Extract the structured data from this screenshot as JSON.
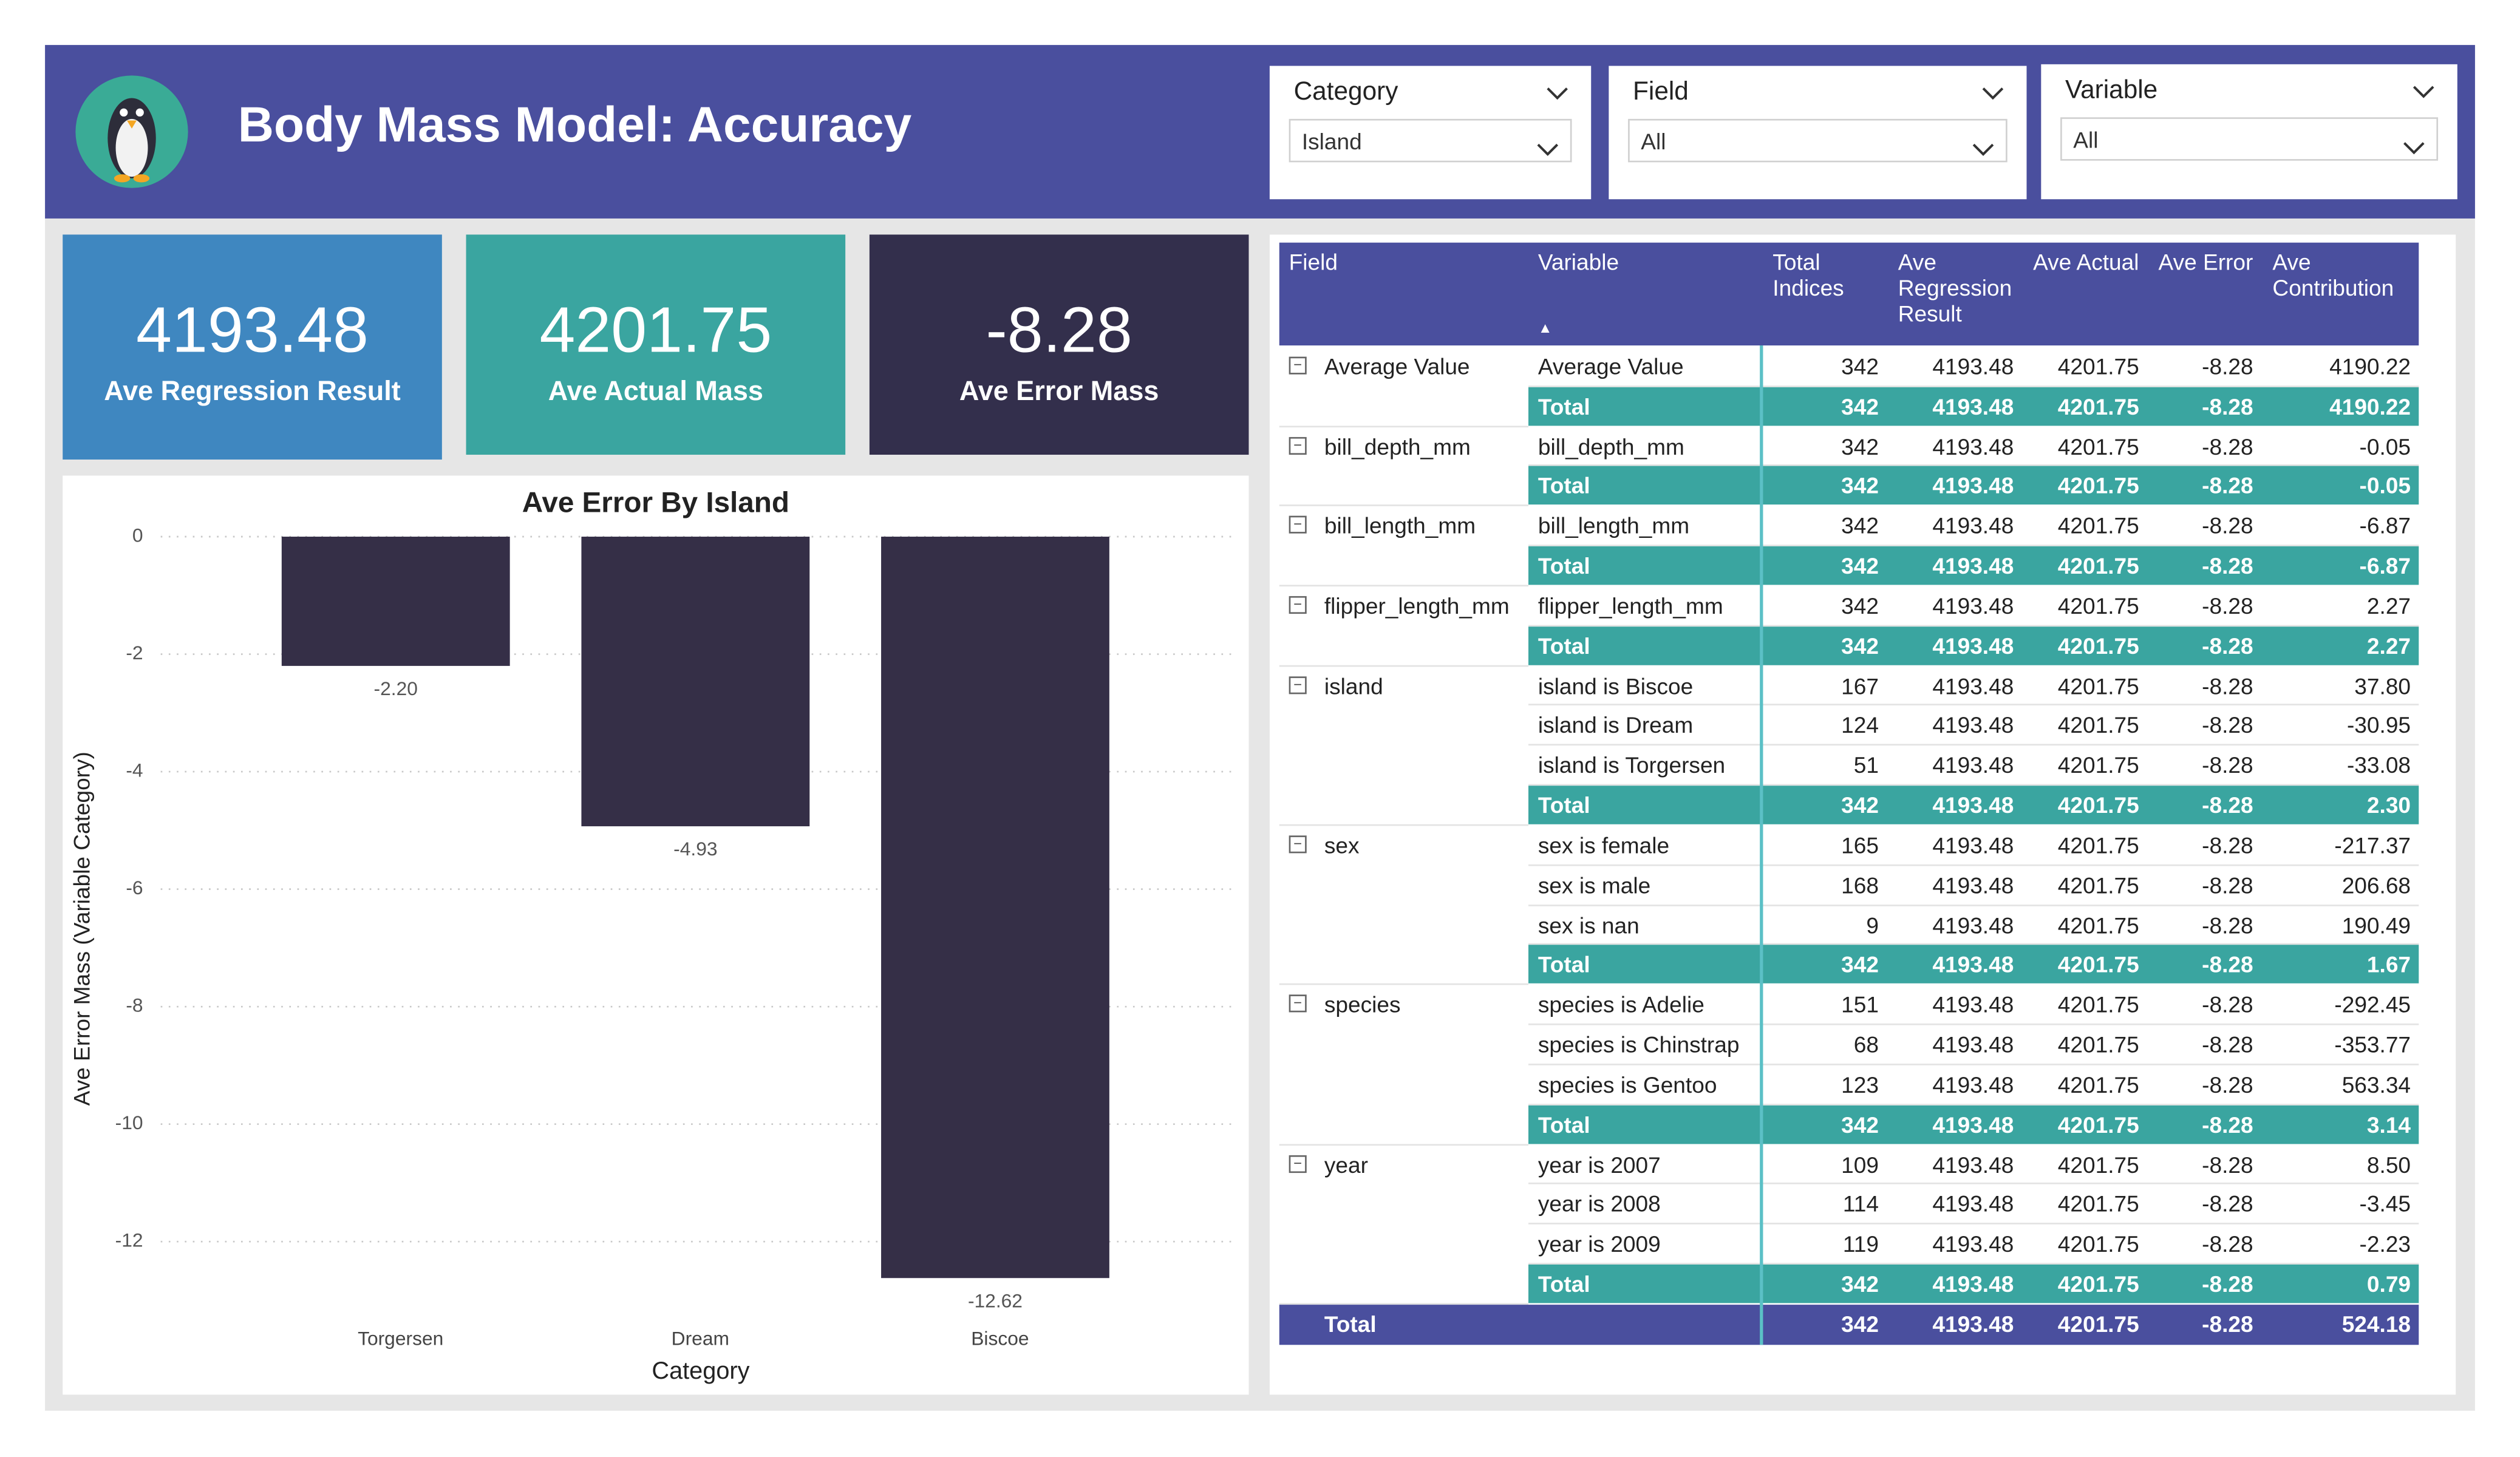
{
  "header": {
    "title": "Body Mass Model: Accuracy"
  },
  "filters": [
    {
      "label": "Category",
      "value": "Island"
    },
    {
      "label": "Field",
      "value": "All"
    },
    {
      "label": "Variable",
      "value": "All"
    }
  ],
  "kpis": [
    {
      "value": "4193.48",
      "label": "Ave Regression Result"
    },
    {
      "value": "4201.75",
      "label": "Ave Actual Mass"
    },
    {
      "value": "-8.28",
      "label": "Ave Error Mass"
    }
  ],
  "chart_data": {
    "type": "bar",
    "title": "Ave Error By Island",
    "x_label": "Category",
    "y_label": "Ave Error Mass (Variable Category)",
    "categories": [
      "Torgersen",
      "Dream",
      "Biscoe"
    ],
    "values": [
      -2.2,
      -4.93,
      -12.62
    ],
    "value_labels": [
      "-2.20",
      "-4.93",
      "-12.62"
    ],
    "color": "#352f47",
    "ylim": [
      -12.8,
      0
    ],
    "yticks": [
      0,
      -2,
      -4,
      -6,
      -8,
      -10,
      -12
    ],
    "grid": true
  },
  "table": {
    "columns": [
      "Field",
      "Variable",
      "Total Indices",
      "Ave Regression Result",
      "Ave Actual",
      "Ave Error",
      "Ave Contribution"
    ],
    "groups": [
      {
        "field": "Average Value",
        "rows": [
          [
            "Average Value",
            "342",
            "4193.48",
            "4201.75",
            "-8.28",
            "4190.22"
          ]
        ],
        "total": [
          "Total",
          "342",
          "4193.48",
          "4201.75",
          "-8.28",
          "4190.22"
        ]
      },
      {
        "field": "bill_depth_mm",
        "rows": [
          [
            "bill_depth_mm",
            "342",
            "4193.48",
            "4201.75",
            "-8.28",
            "-0.05"
          ]
        ],
        "total": [
          "Total",
          "342",
          "4193.48",
          "4201.75",
          "-8.28",
          "-0.05"
        ]
      },
      {
        "field": "bill_length_mm",
        "rows": [
          [
            "bill_length_mm",
            "342",
            "4193.48",
            "4201.75",
            "-8.28",
            "-6.87"
          ]
        ],
        "total": [
          "Total",
          "342",
          "4193.48",
          "4201.75",
          "-8.28",
          "-6.87"
        ]
      },
      {
        "field": "flipper_length_mm",
        "rows": [
          [
            "flipper_length_mm",
            "342",
            "4193.48",
            "4201.75",
            "-8.28",
            "2.27"
          ]
        ],
        "total": [
          "Total",
          "342",
          "4193.48",
          "4201.75",
          "-8.28",
          "2.27"
        ]
      },
      {
        "field": "island",
        "rows": [
          [
            "island is Biscoe",
            "167",
            "4193.48",
            "4201.75",
            "-8.28",
            "37.80"
          ],
          [
            "island is Dream",
            "124",
            "4193.48",
            "4201.75",
            "-8.28",
            "-30.95"
          ],
          [
            "island is Torgersen",
            "51",
            "4193.48",
            "4201.75",
            "-8.28",
            "-33.08"
          ]
        ],
        "total": [
          "Total",
          "342",
          "4193.48",
          "4201.75",
          "-8.28",
          "2.30"
        ]
      },
      {
        "field": "sex",
        "rows": [
          [
            "sex is female",
            "165",
            "4193.48",
            "4201.75",
            "-8.28",
            "-217.37"
          ],
          [
            "sex is male",
            "168",
            "4193.48",
            "4201.75",
            "-8.28",
            "206.68"
          ],
          [
            "sex is nan",
            "9",
            "4193.48",
            "4201.75",
            "-8.28",
            "190.49"
          ]
        ],
        "total": [
          "Total",
          "342",
          "4193.48",
          "4201.75",
          "-8.28",
          "1.67"
        ]
      },
      {
        "field": "species",
        "rows": [
          [
            "species is Adelie",
            "151",
            "4193.48",
            "4201.75",
            "-8.28",
            "-292.45"
          ],
          [
            "species is Chinstrap",
            "68",
            "4193.48",
            "4201.75",
            "-8.28",
            "-353.77"
          ],
          [
            "species is Gentoo",
            "123",
            "4193.48",
            "4201.75",
            "-8.28",
            "563.34"
          ]
        ],
        "total": [
          "Total",
          "342",
          "4193.48",
          "4201.75",
          "-8.28",
          "3.14"
        ]
      },
      {
        "field": "year",
        "rows": [
          [
            "year is 2007",
            "109",
            "4193.48",
            "4201.75",
            "-8.28",
            "8.50"
          ],
          [
            "year is 2008",
            "114",
            "4193.48",
            "4201.75",
            "-8.28",
            "-3.45"
          ],
          [
            "year is 2009",
            "119",
            "4193.48",
            "4201.75",
            "-8.28",
            "-2.23"
          ]
        ],
        "total": [
          "Total",
          "342",
          "4193.48",
          "4201.75",
          "-8.28",
          "0.79"
        ]
      }
    ],
    "grand_total": [
      "Total",
      "342",
      "4193.48",
      "4201.75",
      "-8.28",
      "524.18"
    ]
  }
}
